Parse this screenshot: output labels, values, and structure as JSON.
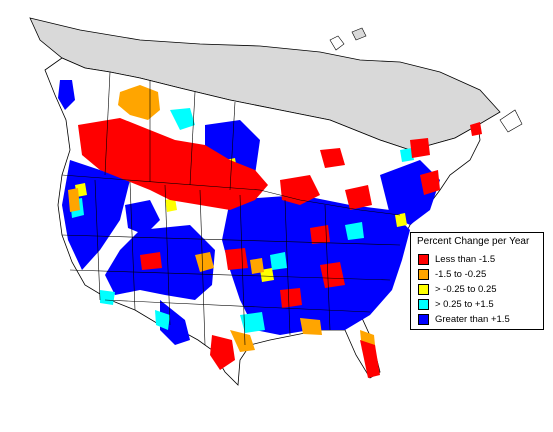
{
  "legend": {
    "title": "Percent Change per Year",
    "items": [
      {
        "label": "Less than -1.5",
        "color": "#ff0000",
        "name": "legend-item-less-than-minus-1-5"
      },
      {
        "label": "-1.5 to -0.25",
        "color": "#ffa500",
        "name": "legend-item-minus-1-5-to-minus-0-25"
      },
      {
        "label": "> -0.25 to 0.25",
        "color": "#ffff00",
        "name": "legend-item-minus-0-25-to-0-25"
      },
      {
        "label": "> 0.25 to +1.5",
        "color": "#00ffff",
        "name": "legend-item-0-25-to-plus-1-5"
      },
      {
        "label": "Greater than +1.5",
        "color": "#0000ff",
        "name": "legend-item-greater-than-plus-1-5"
      }
    ]
  },
  "colors": {
    "no_data": "#d9d9d9",
    "outline": "#000000",
    "background": "#ffffff"
  }
}
